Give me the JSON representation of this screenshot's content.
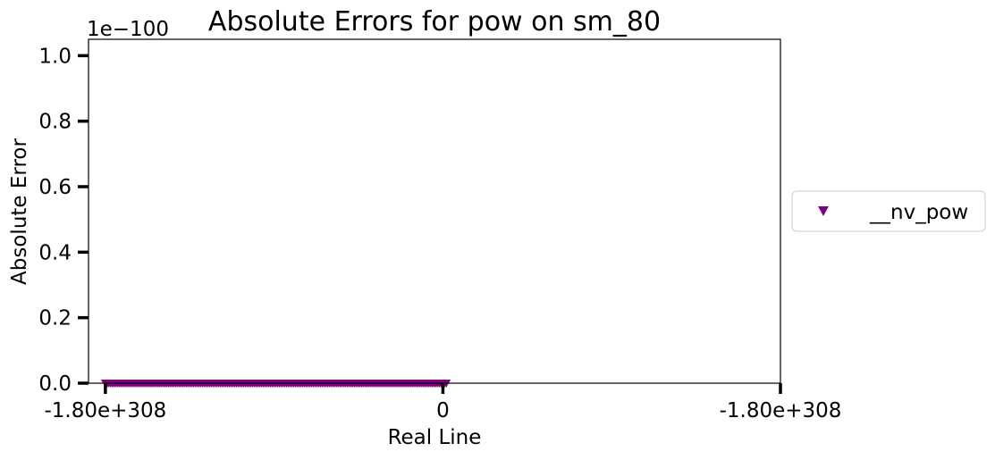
{
  "chart_data": {
    "type": "scatter",
    "title": "Absolute Errors for pow on sm_80",
    "xlabel": "Real Line",
    "ylabel": "Absolute Error",
    "y_offset_label": "1e−100",
    "y_scale_exponent": -100,
    "xlim": [
      -1.05,
      1.0
    ],
    "ylim": [
      0,
      1.05
    ],
    "x_ticks": [
      {
        "value": -1.0,
        "label": "-1.80e+308"
      },
      {
        "value": 0.0,
        "label": "0"
      },
      {
        "value": 1.0,
        "label": "-1.80e+308"
      }
    ],
    "y_ticks": [
      {
        "value": 0.0,
        "label": "0.0"
      },
      {
        "value": 0.2,
        "label": "0.2"
      },
      {
        "value": 0.4,
        "label": "0.4"
      },
      {
        "value": 0.6,
        "label": "0.6"
      },
      {
        "value": 0.8,
        "label": "0.8"
      },
      {
        "value": 1.0,
        "label": "1.0"
      }
    ],
    "grid": false,
    "legend": {
      "placement": "right-outside",
      "entries": [
        "__nv_pow"
      ]
    },
    "series": [
      {
        "name": "__nv_pow",
        "color": "#800080",
        "marker": "triangle-down",
        "x_range": [
          -1.0,
          0.01
        ],
        "y_value": 0.0
      }
    ]
  }
}
